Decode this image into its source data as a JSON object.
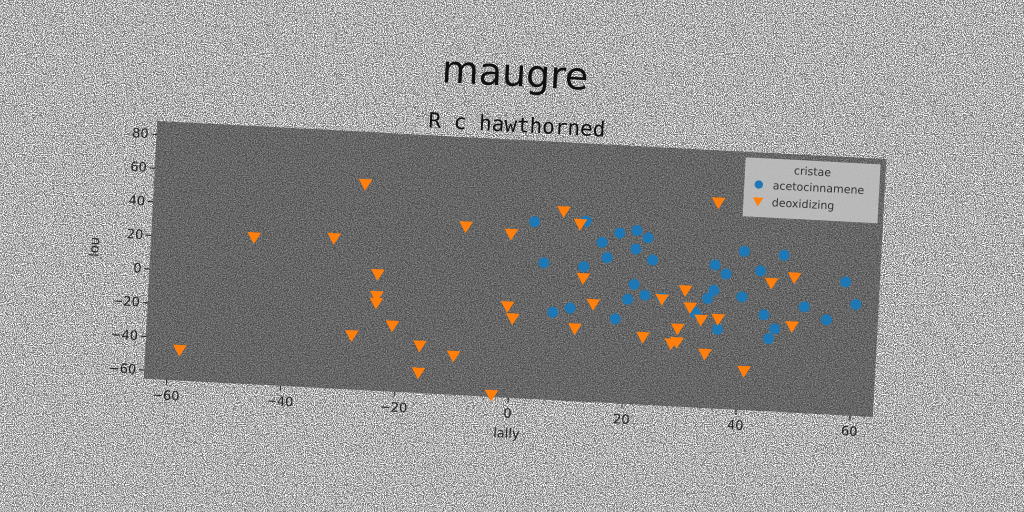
{
  "chart_data": {
    "type": "scatter",
    "title": "maugre",
    "subtitle": "R c hawthorned",
    "xlabel": "lally",
    "ylabel": "lou",
    "xlim": [
      -64,
      64
    ],
    "ylim": [
      -65,
      88
    ],
    "xticks": [
      -60,
      -40,
      -20,
      0,
      20,
      40,
      60
    ],
    "yticks": [
      -60,
      -40,
      -20,
      0,
      20,
      40,
      60,
      80
    ],
    "grid": false,
    "legend": {
      "title": "cristae",
      "placement": "top-right"
    },
    "series": [
      {
        "name": "acetocinnamene",
        "marker": "circle",
        "color": "#1f77b4",
        "points": [
          [
            3,
            40
          ],
          [
            5,
            16
          ],
          [
            7,
            -13
          ],
          [
            10,
            -10
          ],
          [
            12,
            15
          ],
          [
            12,
            42
          ],
          [
            15,
            30
          ],
          [
            16,
            21
          ],
          [
            18,
            -15
          ],
          [
            18,
            36
          ],
          [
            20,
            -3
          ],
          [
            21,
            6
          ],
          [
            21,
            38
          ],
          [
            21,
            27
          ],
          [
            23,
            34
          ],
          [
            23,
            0
          ],
          [
            24,
            21
          ],
          [
            26,
            -1
          ],
          [
            32,
            -9
          ],
          [
            34,
            0
          ],
          [
            35,
            20
          ],
          [
            35,
            5
          ],
          [
            36,
            -18
          ],
          [
            37,
            15
          ],
          [
            40,
            2
          ],
          [
            40,
            29
          ],
          [
            43,
            18
          ],
          [
            44,
            -8
          ],
          [
            45,
            -22
          ],
          [
            46,
            -16
          ],
          [
            47,
            28
          ],
          [
            51,
            -2
          ],
          [
            55,
            -9
          ],
          [
            58,
            14
          ],
          [
            60,
            1
          ]
        ]
      },
      {
        "name": "deoxidizing",
        "marker": "triangle-down",
        "color": "#ff7f0e",
        "points": [
          [
            -58,
            -47
          ],
          [
            -46,
            22
          ],
          [
            -32,
            24
          ],
          [
            -27,
            57
          ],
          [
            -28,
            -33
          ],
          [
            -24,
            4
          ],
          [
            -24,
            -9
          ],
          [
            -24,
            -13
          ],
          [
            -21,
            -26
          ],
          [
            -16,
            -53
          ],
          [
            -16,
            -37
          ],
          [
            -10,
            -42
          ],
          [
            -9,
            35
          ],
          [
            -3,
            -64
          ],
          [
            -1,
            -11
          ],
          [
            -1,
            32
          ],
          [
            0,
            -18
          ],
          [
            8,
            47
          ],
          [
            11,
            40
          ],
          [
            11,
            -22
          ],
          [
            12,
            8
          ],
          [
            14,
            -7
          ],
          [
            23,
            -25
          ],
          [
            26,
            -2
          ],
          [
            28,
            -28
          ],
          [
            29,
            -19
          ],
          [
            29,
            -27
          ],
          [
            30,
            4
          ],
          [
            31,
            -6
          ],
          [
            33,
            -13
          ],
          [
            34,
            -33
          ],
          [
            35,
            57
          ],
          [
            36,
            -12
          ],
          [
            41,
            -42
          ],
          [
            45,
            11
          ],
          [
            49,
            -14
          ],
          [
            49,
            15
          ]
        ]
      }
    ]
  }
}
